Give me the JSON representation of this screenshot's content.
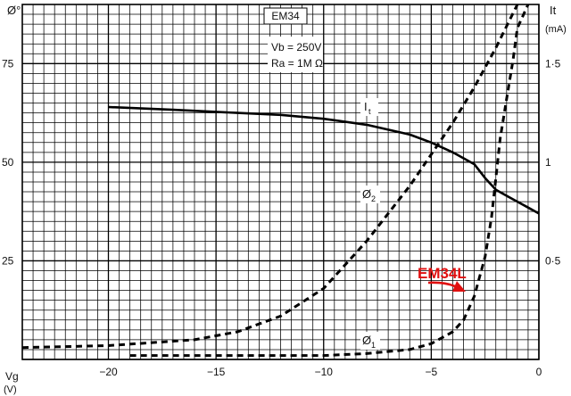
{
  "chart_data": {
    "type": "line",
    "title": "EM34",
    "conditions": [
      "Vb = 250V",
      "Ra = 1M Ω"
    ],
    "x_axis": {
      "label": "Vg",
      "unit": "(V)",
      "range": [
        -24,
        0
      ],
      "ticks": [
        -20,
        -15,
        -10,
        -5,
        0
      ],
      "tick_labels": [
        "−20",
        "−15",
        "−10",
        "−5",
        "0"
      ]
    },
    "y_left": {
      "label": "Ø°",
      "range": [
        0,
        90
      ],
      "ticks": [
        25,
        50,
        75
      ],
      "tick_labels": [
        "25",
        "50",
        "75"
      ]
    },
    "y_right": {
      "label": "It",
      "unit": "(mA)",
      "range": [
        0,
        1.8
      ],
      "ticks": [
        0.5,
        1,
        1.5
      ],
      "tick_labels": [
        "0·5",
        "1",
        "1·5"
      ]
    },
    "grid": true,
    "series": [
      {
        "name": "It",
        "label_text": "I",
        "label_sub": "t",
        "axis": "right",
        "style": "solid",
        "x": [
          -20,
          -17,
          -14,
          -12,
          -10,
          -8,
          -6,
          -5,
          -4,
          -3,
          -2.5,
          -2,
          -1.5,
          -1,
          -0.5,
          0
        ],
        "y": [
          1.28,
          1.266,
          1.25,
          1.24,
          1.22,
          1.19,
          1.14,
          1.1,
          1.05,
          0.99,
          0.92,
          0.86,
          0.83,
          0.8,
          0.77,
          0.74
        ]
      },
      {
        "name": "Ø1",
        "label_text": "Ø",
        "label_sub": "1",
        "axis": "left",
        "style": "dashed",
        "x": [
          -19,
          -15,
          -12,
          -10,
          -8,
          -6,
          -5,
          -4,
          -3.5,
          -3,
          -2.5,
          -2.2,
          -2,
          -1.8,
          -1.5,
          -1.2,
          -1,
          -0.5
        ],
        "y": [
          1,
          1,
          1,
          1,
          1.5,
          2.5,
          4,
          7,
          10,
          16,
          26,
          36,
          46,
          56,
          66,
          76,
          84,
          90
        ]
      },
      {
        "name": "Ø2",
        "label_text": "Ø",
        "label_sub": "2",
        "axis": "left",
        "style": "dashed",
        "x": [
          -24,
          -20,
          -16,
          -14,
          -12,
          -10,
          -8,
          -7,
          -6,
          -5,
          -4,
          -3,
          -2,
          -1
        ],
        "y": [
          3,
          3.5,
          5,
          7,
          11,
          18,
          30,
          37,
          44,
          52,
          60,
          69,
          79,
          90
        ]
      }
    ],
    "annotations": [
      {
        "text": "EM34L",
        "color": "#e01010",
        "arrow": true,
        "x": -3.5,
        "y": 16
      }
    ]
  }
}
